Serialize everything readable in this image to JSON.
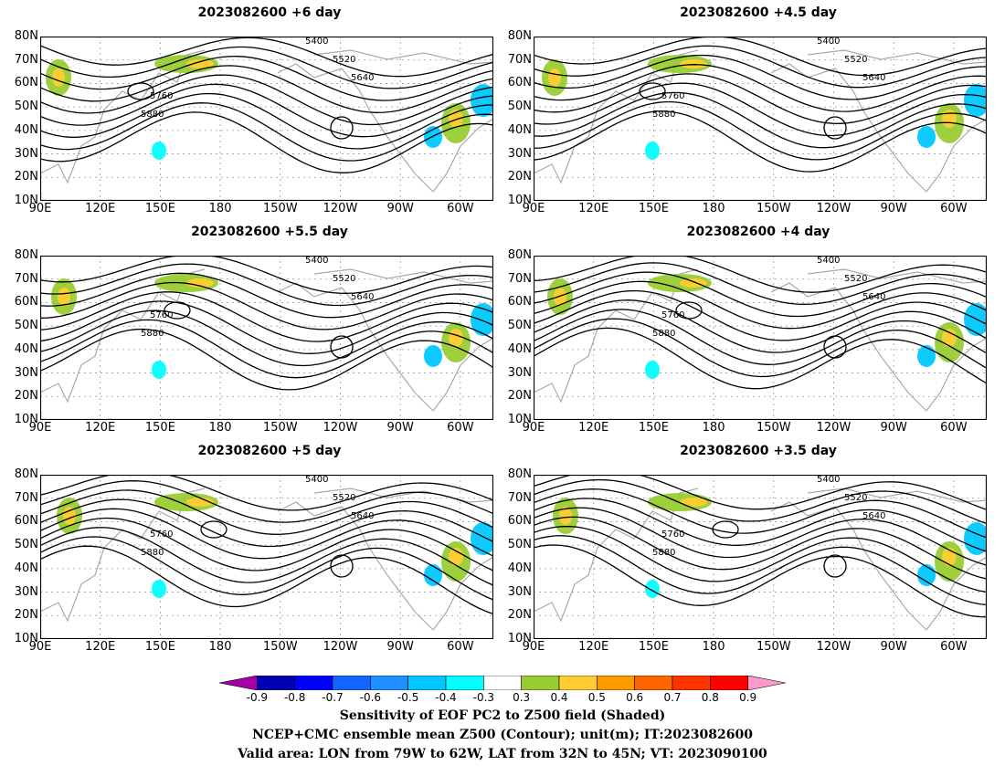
{
  "panels": [
    {
      "title": "2023082600 +6 day"
    },
    {
      "title": "2023082600 +4.5 day"
    },
    {
      "title": "2023082600 +5.5 day"
    },
    {
      "title": "2023082600 +4 day"
    },
    {
      "title": "2023082600 +5 day"
    },
    {
      "title": "2023082600 +3.5 day"
    }
  ],
  "lat_labels": [
    "80N",
    "70N",
    "60N",
    "50N",
    "40N",
    "30N",
    "20N",
    "10N"
  ],
  "lon_labels": [
    "90E",
    "120E",
    "150E",
    "180",
    "150W",
    "120W",
    "90W",
    "60W"
  ],
  "contour_labels": [
    "5400",
    "5520",
    "5640",
    "5760",
    "5880"
  ],
  "colorbar": {
    "ticks": [
      "-0.9",
      "-0.8",
      "-0.7",
      "-0.6",
      "-0.5",
      "-0.4",
      "-0.3",
      "0.3",
      "0.4",
      "0.5",
      "0.6",
      "0.7",
      "0.8",
      "0.9"
    ],
    "colors": [
      "#a800a8",
      "#0000b4",
      "#0000ff",
      "#1464ff",
      "#1e90ff",
      "#00c8ff",
      "#00ffff",
      "#ffffff",
      "#99cc33",
      "#ffcc33",
      "#ff9900",
      "#ff6600",
      "#ff3300",
      "#ff0000",
      "#ff99cc"
    ]
  },
  "caption": {
    "line1": "Sensitivity of EOF PC2 to Z500 field (Shaded)",
    "line2": "NCEP+CMC ensemble mean Z500 (Contour); unit(m); IT:2023082600",
    "line3": "Valid area: LON from 79W to 62W, LAT from 32N to 45N; VT: 2023090100"
  }
}
